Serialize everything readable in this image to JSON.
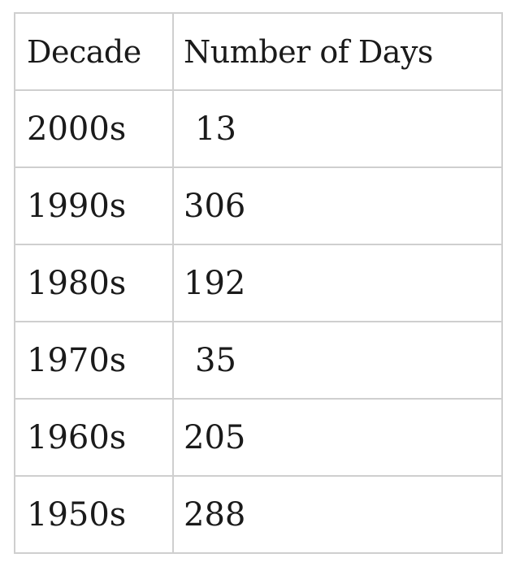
{
  "table": {
    "headers": [
      "Decade",
      "Number of Days"
    ],
    "rows": [
      {
        "decade": "2000s",
        "days": "13"
      },
      {
        "decade": "1990s",
        "days": "306"
      },
      {
        "decade": "1980s",
        "days": "192"
      },
      {
        "decade": "1970s",
        "days": "35"
      },
      {
        "decade": "1960s",
        "days": "205"
      },
      {
        "decade": "1950s",
        "days": "288"
      }
    ]
  }
}
